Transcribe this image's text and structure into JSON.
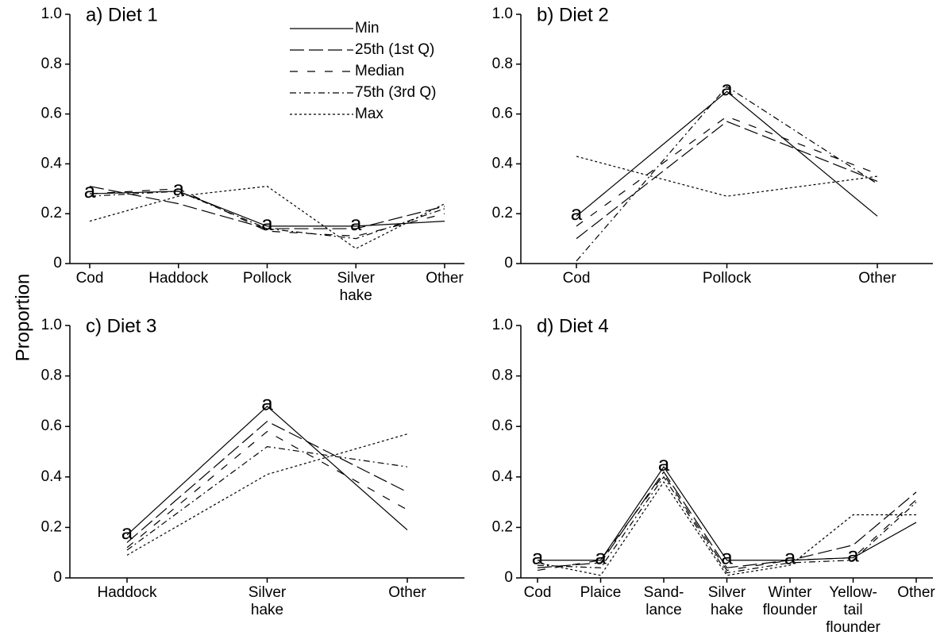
{
  "y_label": "Proportion",
  "chart_data": [
    {
      "type": "line",
      "title": "a) Diet 1",
      "color": "#000000",
      "legend": "upper center",
      "categories": [
        "Cod",
        "Haddock",
        "Pollock",
        "Silver\nhake",
        "Other"
      ],
      "category_labels": [
        "a",
        "a",
        "a",
        "a",
        null
      ],
      "ylim": [
        0,
        1
      ],
      "yticks": [
        0,
        0.2,
        0.4,
        0.6,
        0.8,
        {
          "value": 1,
          "label": "1.0"
        }
      ],
      "series": [
        {
          "name": "Min",
          "dash": "solid",
          "values": [
            0.28,
            0.29,
            0.15,
            0.15,
            0.17
          ]
        },
        {
          "name": "25th (1st Q)",
          "dash": "long-dash",
          "values": [
            0.31,
            0.24,
            0.14,
            0.14,
            0.23
          ]
        },
        {
          "name": "Median",
          "dash": "dash",
          "values": [
            0.28,
            0.3,
            0.13,
            0.11,
            0.2
          ]
        },
        {
          "name": "75th (3rd Q)",
          "dash": "dash-dot",
          "values": [
            0.27,
            0.29,
            0.14,
            0.1,
            0.22
          ]
        },
        {
          "name": "Max",
          "dash": "dotted",
          "values": [
            0.17,
            0.27,
            0.31,
            0.06,
            0.24
          ]
        }
      ]
    },
    {
      "type": "line",
      "title": "b) Diet 2",
      "color": "#000000",
      "categories": [
        "Cod",
        "Pollock",
        "Other"
      ],
      "category_labels": [
        "a",
        "a",
        null
      ],
      "ylim": [
        0,
        1
      ],
      "yticks": [
        0,
        0.2,
        0.4,
        0.6,
        0.8,
        {
          "value": 1,
          "label": "1.0"
        }
      ],
      "series": [
        {
          "dash": "solid",
          "values": [
            0.19,
            0.69,
            0.19
          ]
        },
        {
          "dash": "long-dash",
          "values": [
            0.1,
            0.57,
            0.33
          ]
        },
        {
          "dash": "dash",
          "values": [
            0.15,
            0.59,
            0.36
          ]
        },
        {
          "dash": "dash-dot",
          "values": [
            0.01,
            0.71,
            0.32
          ]
        },
        {
          "dash": "dotted",
          "values": [
            0.43,
            0.27,
            0.35
          ]
        }
      ]
    },
    {
      "type": "line",
      "title": "c) Diet 3",
      "color": "#000000",
      "categories": [
        "Haddock",
        "Silver\nhake",
        "Other"
      ],
      "category_labels": [
        "a",
        "a",
        null
      ],
      "ylim": [
        0,
        1
      ],
      "yticks": [
        0,
        0.2,
        0.4,
        0.6,
        0.8,
        {
          "value": 1,
          "label": "1.0"
        }
      ],
      "series": [
        {
          "dash": "solid",
          "values": [
            0.17,
            0.68,
            0.19
          ]
        },
        {
          "dash": "long-dash",
          "values": [
            0.14,
            0.62,
            0.34
          ]
        },
        {
          "dash": "dash",
          "values": [
            0.12,
            0.58,
            0.27
          ]
        },
        {
          "dash": "dash-dot",
          "values": [
            0.11,
            0.52,
            0.44
          ]
        },
        {
          "dash": "dotted",
          "values": [
            0.09,
            0.41,
            0.57
          ]
        }
      ]
    },
    {
      "type": "line",
      "title": "d) Diet 4",
      "color": "#000000",
      "categories": [
        "Cod",
        "Plaice",
        "Sand-\nlance",
        "Silver\nhake",
        "Winter\nflounder",
        "Yellow-\ntail\nflounder",
        "Other"
      ],
      "category_labels": [
        "a",
        "a",
        "a",
        "a",
        "a",
        "a",
        null
      ],
      "ylim": [
        0,
        1
      ],
      "yticks": [
        0,
        0.2,
        0.4,
        0.6,
        0.8,
        {
          "value": 1,
          "label": "1.0"
        }
      ],
      "series": [
        {
          "dash": "solid",
          "values": [
            0.07,
            0.07,
            0.44,
            0.07,
            0.07,
            0.08,
            0.22
          ]
        },
        {
          "dash": "long-dash",
          "values": [
            0.04,
            0.06,
            0.42,
            0.04,
            0.07,
            0.13,
            0.34
          ]
        },
        {
          "dash": "dash",
          "values": [
            0.03,
            0.07,
            0.41,
            0.03,
            0.07,
            0.08,
            0.31
          ]
        },
        {
          "dash": "dash-dot",
          "values": [
            0.05,
            0.04,
            0.4,
            0.02,
            0.06,
            0.07,
            0.3
          ]
        },
        {
          "dash": "dotted",
          "values": [
            0.06,
            0.01,
            0.38,
            0.01,
            0.05,
            0.25,
            0.25
          ]
        }
      ]
    }
  ]
}
